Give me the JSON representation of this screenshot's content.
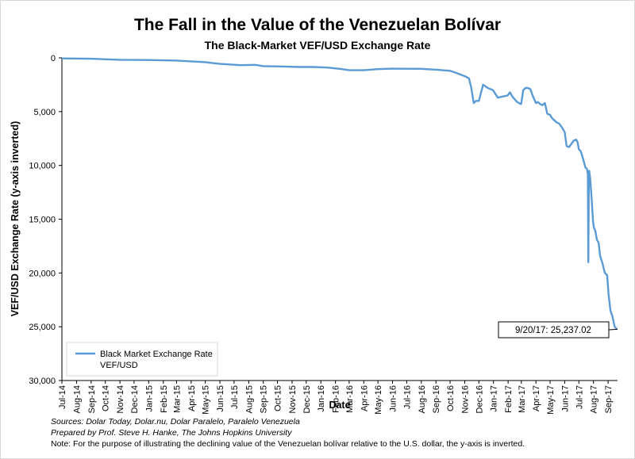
{
  "chart_data": {
    "type": "line",
    "title": "The Fall in the Value of the Venezuelan Bolívar",
    "subtitle": "The Black-Market VEF/USD Exchange Rate",
    "xlabel": "Date",
    "ylabel": "VEF/USD Exchange Rate (y-axis inverted)",
    "ylim": [
      0,
      30000
    ],
    "y_inverted": true,
    "y_ticks": [
      0,
      5000,
      10000,
      15000,
      20000,
      25000,
      30000
    ],
    "y_tick_labels": [
      "0",
      "5,000",
      "10,000",
      "15,000",
      "20,000",
      "25,000",
      "30,000"
    ],
    "x_tick_labels": [
      "Jul-14",
      "Aug-14",
      "Sep-14",
      "Oct-14",
      "Nov-14",
      "Dec-14",
      "Jan-15",
      "Feb-15",
      "Mar-15",
      "Apr-15",
      "May-15",
      "Jun-15",
      "Jul-15",
      "Aug-15",
      "Sep-15",
      "Oct-15",
      "Nov-15",
      "Dec-15",
      "Jan-16",
      "Feb-16",
      "Mar-16",
      "Apr-16",
      "May-16",
      "Jun-16",
      "Jul-16",
      "Aug-16",
      "Sep-16",
      "Oct-16",
      "Nov-16",
      "Dec-16",
      "Jan-17",
      "Feb-17",
      "Mar-17",
      "Apr-17",
      "May-17",
      "Jun-17",
      "Jul-17",
      "Aug-17",
      "Sep-17"
    ],
    "grid": false,
    "legend_position": "bottom-left",
    "series": [
      {
        "name": "Black Market Exchange Rate VEF/USD",
        "color": "#5b9bd5",
        "x": [
          "2014-07-01",
          "2014-09-01",
          "2014-11-01",
          "2015-01-01",
          "2015-03-01",
          "2015-05-01",
          "2015-06-01",
          "2015-07-15",
          "2015-08-15",
          "2015-09-01",
          "2015-10-15",
          "2015-11-15",
          "2015-12-15",
          "2016-01-15",
          "2016-02-15",
          "2016-03-01",
          "2016-04-01",
          "2016-05-01",
          "2016-06-01",
          "2016-08-01",
          "2016-09-01",
          "2016-10-01",
          "2016-10-20",
          "2016-11-01",
          "2016-11-10",
          "2016-11-15",
          "2016-11-20",
          "2016-11-25",
          "2016-12-01",
          "2016-12-10",
          "2016-12-20",
          "2016-12-31",
          "2017-01-10",
          "2017-01-20",
          "2017-01-31",
          "2017-02-05",
          "2017-02-10",
          "2017-02-20",
          "2017-02-28",
          "2017-03-01",
          "2017-03-05",
          "2017-03-10",
          "2017-03-15",
          "2017-03-20",
          "2017-03-25",
          "2017-04-01",
          "2017-04-05",
          "2017-04-10",
          "2017-04-15",
          "2017-04-20",
          "2017-04-25",
          "2017-05-01",
          "2017-05-05",
          "2017-05-10",
          "2017-05-15",
          "2017-05-20",
          "2017-05-25",
          "2017-06-01",
          "2017-06-05",
          "2017-06-10",
          "2017-06-15",
          "2017-06-20",
          "2017-06-25",
          "2017-06-28",
          "2017-07-01",
          "2017-07-05",
          "2017-07-10",
          "2017-07-15",
          "2017-07-18",
          "2017-07-20",
          "2017-07-21",
          "2017-07-22",
          "2017-07-23",
          "2017-07-25",
          "2017-07-28",
          "2017-07-31",
          "2017-08-02",
          "2017-08-05",
          "2017-08-08",
          "2017-08-12",
          "2017-08-15",
          "2017-08-20",
          "2017-08-25",
          "2017-08-30",
          "2017-09-02",
          "2017-09-06",
          "2017-09-10",
          "2017-09-15",
          "2017-09-20"
        ],
        "values": [
          50,
          80,
          180,
          200,
          250,
          400,
          560,
          680,
          650,
          770,
          800,
          850,
          850,
          900,
          1050,
          1150,
          1150,
          1050,
          1000,
          1020,
          1100,
          1200,
          1500,
          1700,
          1900,
          2800,
          4200,
          4000,
          4000,
          2500,
          2800,
          3000,
          3700,
          3600,
          3500,
          3200,
          3600,
          4100,
          4300,
          4200,
          3000,
          2800,
          2800,
          2900,
          3500,
          4200,
          4100,
          4300,
          4400,
          4200,
          5200,
          5300,
          5600,
          5800,
          6000,
          6100,
          6400,
          6900,
          8200,
          8300,
          8000,
          7700,
          7600,
          7800,
          8500,
          8700,
          9400,
          10200,
          10300,
          10800,
          19000,
          12000,
          10500,
          11200,
          13000,
          15200,
          15800,
          16100,
          16900,
          17200,
          18400,
          19100,
          20000,
          20200,
          22000,
          23500,
          24000,
          25000,
          25237.02
        ]
      }
    ],
    "annotation": "9/20/17: 25,237.02",
    "notes": [
      "Sources: Dolar Today, Dolar.nu, Dolar Paralelo, Paralelo Venezuela",
      "Prepared by Prof. Steve H. Hanke, The Johns Hopkins University",
      "Note: For the purpose of illustrating the declining value of the Venezuelan bolívar relative to the U.S. dollar, the y-axis is inverted."
    ]
  }
}
